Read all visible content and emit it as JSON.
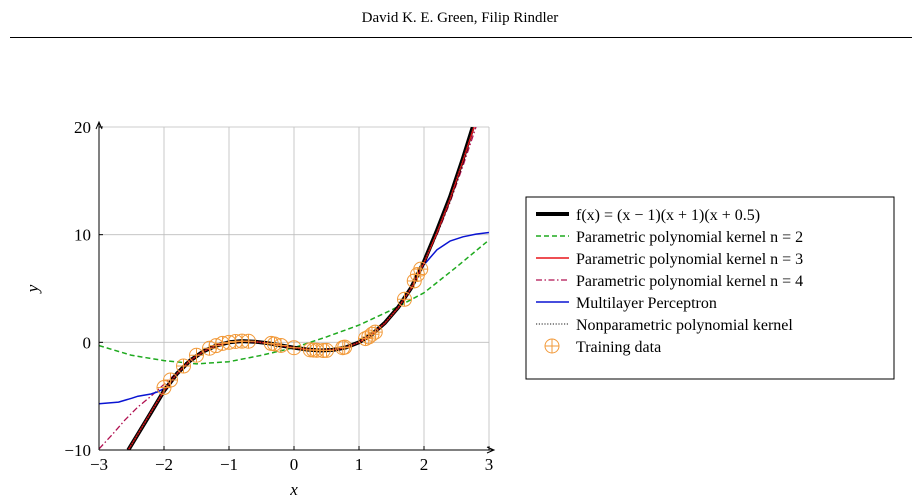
{
  "page": {
    "header_text": "David K. E. Green, Filip Rindler"
  },
  "chart_data": {
    "type": "line",
    "title": "",
    "xlabel": "x",
    "ylabel": "y",
    "xlim": [
      -3,
      3
    ],
    "ylim": [
      -10,
      20
    ],
    "xticks": [
      -3,
      -2,
      -1,
      0,
      1,
      2,
      3
    ],
    "yticks": [
      -10,
      0,
      10,
      20
    ],
    "xtick_labels": [
      "−3",
      "−2",
      "−1",
      "0",
      "1",
      "2",
      "3"
    ],
    "ytick_labels": [
      "−10",
      "0",
      "10",
      "20"
    ],
    "grid": true,
    "legend_position": "right-outside",
    "series": [
      {
        "name": "f(x) = (x − 1)(x + 1)(x + 0.5)",
        "style": "solid-thick",
        "color": "#000000",
        "x": [
          -2.55,
          -2.4,
          -2.2,
          -2.0,
          -1.8,
          -1.6,
          -1.4,
          -1.2,
          -1.0,
          -0.8,
          -0.6,
          -0.4,
          -0.2,
          0.0,
          0.2,
          0.4,
          0.6,
          0.8,
          1.0,
          1.2,
          1.4,
          1.6,
          1.8,
          2.0,
          2.2,
          2.4,
          2.6,
          2.75
        ],
        "y": [
          -10.0,
          -8.51,
          -6.53,
          -4.5,
          -2.9,
          -1.71,
          -0.86,
          -0.31,
          0.0,
          0.11,
          0.06,
          -0.08,
          -0.29,
          -0.5,
          -0.67,
          -0.76,
          -0.7,
          -0.47,
          0.0,
          0.75,
          1.82,
          3.23,
          5.04,
          7.5,
          10.4,
          13.5,
          17.1,
          20.0
        ]
      },
      {
        "name": "Parametric polynomial kernel n = 2",
        "style": "dashed",
        "color": "#1faa1f",
        "x": [
          -3,
          -2.5,
          -2,
          -1.5,
          -1,
          -0.5,
          0,
          0.5,
          1,
          1.5,
          2,
          2.5,
          3
        ],
        "y": [
          -0.3,
          -1.2,
          -1.7,
          -2.0,
          -1.8,
          -1.2,
          -0.5,
          0.5,
          1.6,
          3.0,
          4.6,
          7.0,
          9.5
        ]
      },
      {
        "name": "Parametric polynomial kernel n = 3",
        "style": "solid",
        "color": "#e8151a",
        "x": [
          -2.55,
          -2.4,
          -2.2,
          -2.0,
          -1.8,
          -1.6,
          -1.4,
          -1.2,
          -1.0,
          -0.8,
          -0.6,
          -0.4,
          -0.2,
          0.0,
          0.2,
          0.4,
          0.6,
          0.8,
          1.0,
          1.2,
          1.4,
          1.6,
          1.8,
          2.0,
          2.2,
          2.4,
          2.6,
          2.77
        ],
        "y": [
          -10.0,
          -8.5,
          -6.5,
          -4.5,
          -2.9,
          -1.7,
          -0.86,
          -0.3,
          0.0,
          0.11,
          0.06,
          -0.08,
          -0.29,
          -0.5,
          -0.66,
          -0.75,
          -0.7,
          -0.47,
          0.0,
          0.75,
          1.8,
          3.2,
          5.0,
          7.4,
          10.2,
          13.3,
          16.9,
          20.0
        ]
      },
      {
        "name": "Parametric polynomial kernel n = 4",
        "style": "dashdot",
        "color": "#b01050",
        "x": [
          -3.0,
          -2.8,
          -2.6,
          -2.4,
          -2.2,
          -2.0,
          -1.8,
          -1.6,
          -1.4,
          -1.2,
          -1.0,
          -0.8,
          -0.6,
          -0.4,
          -0.2,
          0.0,
          0.2,
          0.4,
          0.6,
          0.8,
          1.0,
          1.2,
          1.4,
          1.6,
          1.8,
          2.0,
          2.2,
          2.4,
          2.6,
          2.8
        ],
        "y": [
          -9.9,
          -8.6,
          -7.2,
          -6.0,
          -5.0,
          -3.9,
          -2.8,
          -1.7,
          -0.9,
          -0.3,
          0.0,
          0.1,
          0.06,
          -0.08,
          -0.29,
          -0.5,
          -0.66,
          -0.75,
          -0.7,
          -0.47,
          0.0,
          0.75,
          1.8,
          3.2,
          5.0,
          7.3,
          10.0,
          13.0,
          16.4,
          20.0
        ]
      },
      {
        "name": "Multilayer Perceptron",
        "style": "solid",
        "color": "#0a14d2",
        "x": [
          -3.0,
          -2.7,
          -2.5,
          -2.4,
          -2.3,
          -2.2,
          -2.1,
          -2.0,
          -1.8,
          -1.6,
          -1.4,
          -1.2,
          -1.0,
          -0.8,
          -0.6,
          -0.4,
          -0.2,
          0.0,
          0.2,
          0.4,
          0.6,
          0.8,
          1.0,
          1.2,
          1.4,
          1.6,
          1.8,
          2.0,
          2.2,
          2.4,
          2.6,
          2.8,
          3.0
        ],
        "y": [
          -5.7,
          -5.55,
          -5.2,
          -5.0,
          -4.9,
          -4.8,
          -4.6,
          -4.3,
          -2.9,
          -1.7,
          -0.86,
          -0.3,
          0.0,
          0.1,
          0.05,
          -0.1,
          -0.3,
          -0.5,
          -0.65,
          -0.75,
          -0.7,
          -0.45,
          0.0,
          0.75,
          1.8,
          3.2,
          5.0,
          7.2,
          8.6,
          9.4,
          9.8,
          10.05,
          10.2
        ]
      },
      {
        "name": "Nonparametric polynomial kernel",
        "style": "dotted",
        "color": "#1a1a1a",
        "x": [
          -2.55,
          -2.4,
          -2.2,
          -2.0,
          -1.8,
          -1.6,
          -1.4,
          -1.2,
          -1.0,
          -0.8,
          -0.6,
          -0.4,
          -0.2,
          0.0,
          0.2,
          0.4,
          0.6,
          0.8,
          1.0,
          1.2,
          1.4,
          1.6,
          1.8,
          2.0,
          2.2,
          2.4,
          2.6,
          2.75
        ],
        "y": [
          -10.0,
          -8.51,
          -6.53,
          -4.5,
          -2.9,
          -1.71,
          -0.86,
          -0.31,
          0.0,
          0.11,
          0.06,
          -0.08,
          -0.29,
          -0.5,
          -0.67,
          -0.76,
          -0.7,
          -0.47,
          0.0,
          0.75,
          1.82,
          3.23,
          5.04,
          7.5,
          10.4,
          13.5,
          17.1,
          20.0
        ]
      }
    ],
    "training_data": {
      "name": "Training data",
      "color": "#f29a3a",
      "x": [
        -2.0,
        -1.9,
        -1.7,
        -1.5,
        -1.3,
        -1.2,
        -1.1,
        -1.0,
        -0.9,
        -0.8,
        -0.7,
        -0.35,
        -0.3,
        -0.2,
        0.0,
        0.25,
        0.3,
        0.35,
        0.45,
        0.5,
        0.75,
        0.78,
        1.1,
        1.15,
        1.2,
        1.25,
        1.7,
        1.85,
        1.9,
        1.95
      ],
      "y": [
        -4.2,
        -3.5,
        -2.2,
        -1.2,
        -0.55,
        -0.31,
        -0.1,
        0.0,
        0.08,
        0.11,
        0.1,
        -0.1,
        -0.15,
        -0.29,
        -0.5,
        -0.7,
        -0.72,
        -0.74,
        -0.76,
        -0.75,
        -0.5,
        -0.45,
        0.35,
        0.5,
        0.75,
        0.95,
        4.0,
        5.7,
        6.3,
        6.8
      ]
    }
  }
}
